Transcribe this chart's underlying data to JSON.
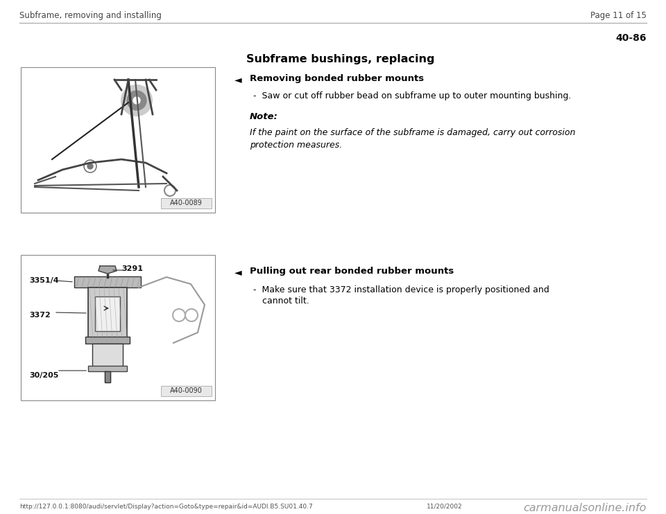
{
  "bg_color": "#ffffff",
  "header_left": "Subframe, removing and installing",
  "header_right": "Page 11 of 15",
  "page_number": "40-86",
  "title": "Subframe bushings, replacing",
  "section1_header": "Removing bonded rubber mounts",
  "section1_bullet": "-  Saw or cut off rubber bead on subframe up to outer mounting bushing.",
  "section1_note_label": "Note:",
  "section1_note_text": "If the paint on the surface of the subframe is damaged, carry out corrosion\nprotection measures.",
  "section2_header": "Pulling out rear bonded rubber mounts",
  "section2_bullet1": "-  Make sure that 3372 installation device is properly positioned and",
  "section2_bullet2": "     cannot tilt.",
  "image1_label": "A40-0089",
  "image2_label": "A40-0090",
  "image2_tags": [
    "3351/4",
    "3291",
    "3372",
    "30/205"
  ],
  "footer_url": "http://127.0.0.1:8080/audi/servlet/Display?action=Goto&type=repair&id=AUDI.B5.SU01.40.7",
  "footer_date": "11/20/2002",
  "footer_watermark": "carmanualsonline.info",
  "arrow_symbol": "◄",
  "header_color": "#444444",
  "line_color": "#aaaaaa",
  "text_color": "#000000",
  "footer_color": "#555555",
  "watermark_color": "#999999",
  "img_border_color": "#888888",
  "img_bg_color": "#ffffff",
  "img_label_bg": "#e8e8e8"
}
